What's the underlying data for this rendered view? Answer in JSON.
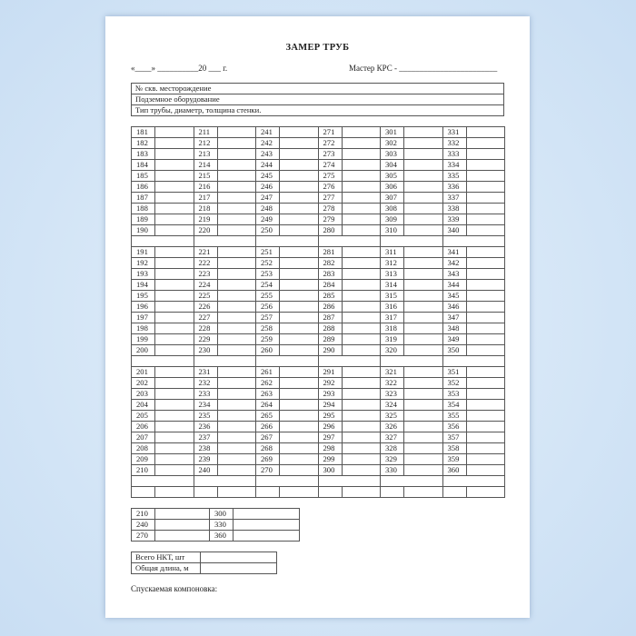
{
  "title": "ЗАМЕР ТРУБ",
  "date_line": "«____» __________20 ___ г.",
  "master_line": "Мастер КРС - ________________________",
  "info_rows": [
    "№ скв. месторождение",
    "Подземное оборудование",
    "Тип трубы, диаметр, толщина стенки."
  ],
  "blocks": [
    [
      [
        "181",
        "211",
        "241",
        "271",
        "301",
        "331"
      ],
      [
        "182",
        "212",
        "242",
        "272",
        "302",
        "332"
      ],
      [
        "183",
        "213",
        "243",
        "273",
        "303",
        "333"
      ],
      [
        "184",
        "214",
        "244",
        "274",
        "304",
        "334"
      ],
      [
        "185",
        "215",
        "245",
        "275",
        "305",
        "335"
      ],
      [
        "186",
        "216",
        "246",
        "276",
        "306",
        "336"
      ],
      [
        "187",
        "217",
        "247",
        "277",
        "307",
        "337"
      ],
      [
        "188",
        "218",
        "248",
        "278",
        "308",
        "338"
      ],
      [
        "189",
        "219",
        "249",
        "279",
        "309",
        "339"
      ],
      [
        "190",
        "220",
        "250",
        "280",
        "310",
        "340"
      ]
    ],
    [
      [
        "191",
        "221",
        "251",
        "281",
        "311",
        "341"
      ],
      [
        "192",
        "222",
        "252",
        "282",
        "312",
        "342"
      ],
      [
        "193",
        "223",
        "253",
        "283",
        "313",
        "343"
      ],
      [
        "194",
        "224",
        "254",
        "284",
        "314",
        "344"
      ],
      [
        "195",
        "225",
        "255",
        "285",
        "315",
        "345"
      ],
      [
        "196",
        "226",
        "256",
        "286",
        "316",
        "346"
      ],
      [
        "197",
        "227",
        "257",
        "287",
        "317",
        "347"
      ],
      [
        "198",
        "228",
        "258",
        "288",
        "318",
        "348"
      ],
      [
        "199",
        "229",
        "259",
        "289",
        "319",
        "349"
      ],
      [
        "200",
        "230",
        "260",
        "290",
        "320",
        "350"
      ]
    ],
    [
      [
        "201",
        "231",
        "261",
        "291",
        "321",
        "351"
      ],
      [
        "202",
        "232",
        "262",
        "292",
        "322",
        "352"
      ],
      [
        "203",
        "233",
        "263",
        "293",
        "323",
        "353"
      ],
      [
        "204",
        "234",
        "264",
        "294",
        "324",
        "354"
      ],
      [
        "205",
        "235",
        "265",
        "295",
        "325",
        "355"
      ],
      [
        "206",
        "236",
        "266",
        "296",
        "326",
        "356"
      ],
      [
        "207",
        "237",
        "267",
        "297",
        "327",
        "357"
      ],
      [
        "208",
        "238",
        "268",
        "298",
        "328",
        "358"
      ],
      [
        "209",
        "239",
        "269",
        "299",
        "329",
        "359"
      ],
      [
        "210",
        "240",
        "270",
        "300",
        "330",
        "360"
      ]
    ]
  ],
  "summary_rows": [
    [
      "210",
      "300"
    ],
    [
      "240",
      "330"
    ],
    [
      "270",
      "360"
    ]
  ],
  "totals": [
    "Всего НКТ, шт",
    "Общая длина, м"
  ],
  "assembly_label": "Спускаемая компоновка:"
}
